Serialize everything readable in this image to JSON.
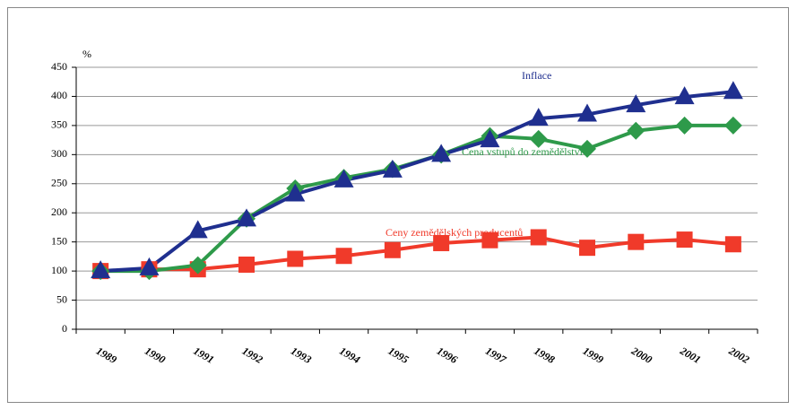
{
  "chart_data": {
    "type": "line",
    "y_unit": "%",
    "categories": [
      "1989",
      "1990",
      "1991",
      "1992",
      "1993",
      "1994",
      "1995",
      "1996",
      "1997",
      "1998",
      "1999",
      "2000",
      "2001",
      "2002"
    ],
    "ylim": [
      0,
      450
    ],
    "yticks": [
      0,
      50,
      100,
      150,
      200,
      250,
      300,
      350,
      400,
      450
    ],
    "grid": true,
    "series": [
      {
        "name": "Ceny zemědělských producentů",
        "color": "#f03a2a",
        "marker": "square",
        "values": [
          100,
          103,
          103,
          111,
          121,
          126,
          136,
          148,
          153,
          158,
          140,
          150,
          154,
          146
        ]
      },
      {
        "name": "Cena vstupů do zemědělství",
        "color": "#2e9a4a",
        "marker": "diamond",
        "values": [
          100,
          100,
          110,
          190,
          242,
          260,
          275,
          300,
          332,
          327,
          310,
          341,
          350,
          350
        ]
      },
      {
        "name": "Inflace",
        "color": "#1f2f8f",
        "marker": "triangle",
        "values": [
          100,
          105,
          169,
          189,
          232,
          256,
          273,
          300,
          325,
          362,
          369,
          385,
          399,
          408
        ]
      }
    ]
  }
}
